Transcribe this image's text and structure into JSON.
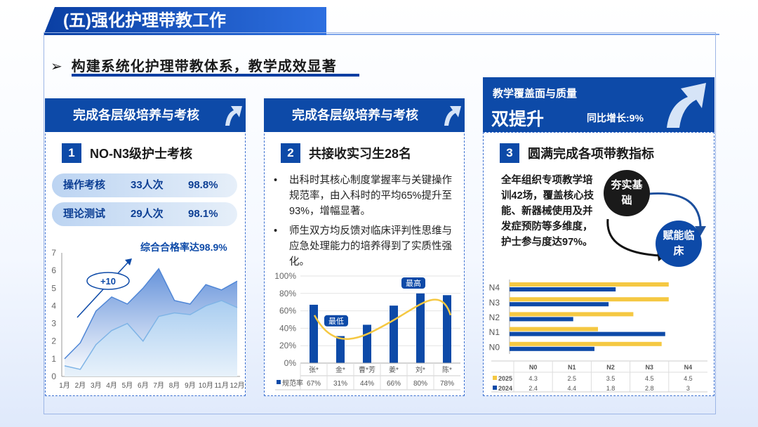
{
  "header": {
    "title": "(五)强化护理带教工作"
  },
  "subtitle": "构建系统化护理带教体系，教学成效显著",
  "panel1": {
    "head": "完成各层级培养与考核",
    "section_num": "1",
    "section_title": "NO-N3级护士考核",
    "rows": [
      {
        "label": "操作考核",
        "count": "33人次",
        "rate": "98.8%"
      },
      {
        "label": "理论测试",
        "count": "29人次",
        "rate": "98.1%"
      }
    ],
    "chart_note": "综合合格率达98.9%",
    "plus_label": "+10"
  },
  "panel2": {
    "head": "完成各层级培养与考核",
    "section_num": "2",
    "section_title": "共接收实习生28名",
    "bullets": [
      "出科时其核心制度掌握率与关键操作规范率，由入科时的平均65%提升至93%，增幅显著。",
      "师生双方均反馈对临床评判性思维与应急处理能力的培养得到了实质性强化。"
    ],
    "low_tag": "最低",
    "high_tag": "最高",
    "legend": "规范率"
  },
  "panel3": {
    "cover_line1": "教学覆盖面与质量",
    "cover_line2": "双提升",
    "cover_growth": "同比增长:9%",
    "section_num": "3",
    "section_title": "圆满完成各项带教指标",
    "text": "全年组织专项教学培训42场，覆盖核心技能、新器械使用及并发症预防等多维度，护士参与度达97%。",
    "circle1": "夯实基础",
    "circle2": "赋能临床"
  },
  "chart_data": [
    {
      "type": "area",
      "categories": [
        "1月",
        "2月",
        "3月",
        "4月",
        "5月",
        "6月",
        "7月",
        "8月",
        "9月",
        "10月",
        "11月",
        "12月"
      ],
      "ylim": [
        0,
        7
      ],
      "yticks": [
        "0",
        "1",
        "2",
        "3",
        "4",
        "5",
        "6",
        "7"
      ],
      "series": [
        {
          "values": [
            1.0,
            1.9,
            3.7,
            4.5,
            4.1,
            5.0,
            6.1,
            4.3,
            4.1,
            5.2,
            4.9,
            5.4
          ]
        },
        {
          "values": [
            0.6,
            0.4,
            1.8,
            2.6,
            3.0,
            2.0,
            3.4,
            3.6,
            3.5,
            4.0,
            4.3,
            3.9
          ]
        }
      ]
    },
    {
      "type": "bar",
      "categories": [
        "张*",
        "金*",
        "曹*芳",
        "姜*",
        "刘*",
        "陈*"
      ],
      "ylim": [
        0,
        100
      ],
      "yticks": [
        "0%",
        "20%",
        "40%",
        "60%",
        "80%",
        "100%"
      ],
      "series": [
        {
          "name": "规范率",
          "values": [
            67,
            31,
            44,
            66,
            80,
            78
          ],
          "labels": [
            "67%",
            "31%",
            "44%",
            "66%",
            "80%",
            "78%"
          ]
        }
      ]
    },
    {
      "type": "bar",
      "orientation": "horizontal",
      "categories": [
        "N0",
        "N1",
        "N2",
        "N3",
        "N4"
      ],
      "series": [
        {
          "name": "2025",
          "color": "#f5c842",
          "values": [
            4.3,
            2.5,
            3.5,
            4.5,
            4.5
          ],
          "labels": [
            "4.3",
            "2.5",
            "3.5",
            "4.5",
            "4.5"
          ]
        },
        {
          "name": "2024",
          "color": "#0d4aa8",
          "values": [
            2.4,
            4.4,
            1.8,
            2.8,
            3
          ],
          "labels": [
            "2.4",
            "4.4",
            "1.8",
            "2.8",
            "3"
          ]
        }
      ]
    }
  ]
}
